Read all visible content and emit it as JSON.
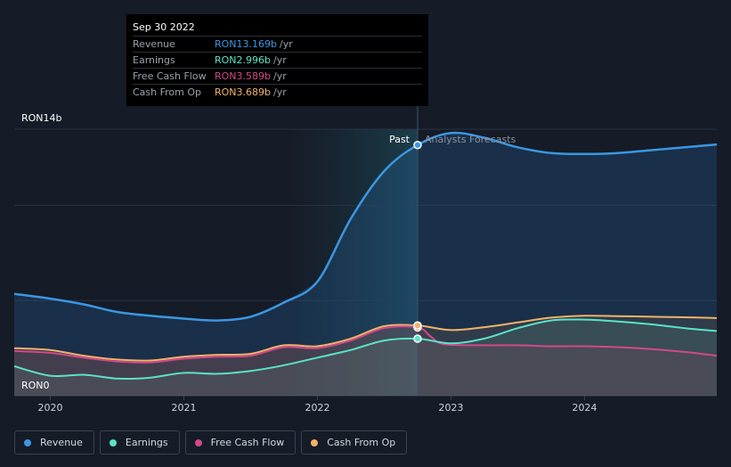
{
  "chart_data": {
    "type": "area",
    "currency_unit": "RON",
    "y_axis_labels": [
      "RON14b",
      "RON0"
    ],
    "ylim": [
      0,
      14
    ],
    "x_ticks": [
      "2020",
      "2021",
      "2022",
      "2023",
      "2024"
    ],
    "xlim": [
      2019.73,
      2024.99
    ],
    "past_label": "Past",
    "forecast_label": "Analysts Forecasts",
    "split_x": 2022.75,
    "highlight_start_x": 2021.75,
    "series": [
      {
        "name": "Revenue",
        "color": "#3b97e2",
        "x": [
          2019.73,
          2020.0,
          2020.25,
          2020.5,
          2020.75,
          2021.0,
          2021.25,
          2021.5,
          2021.75,
          2022.0,
          2022.25,
          2022.5,
          2022.75,
          2023.0,
          2023.25,
          2023.5,
          2023.75,
          2024.0,
          2024.25,
          2024.5,
          2024.75,
          2024.99
        ],
        "y": [
          5.35,
          5.1,
          4.8,
          4.4,
          4.2,
          4.05,
          3.95,
          4.15,
          4.9,
          6.0,
          9.3,
          11.8,
          13.169,
          13.8,
          13.55,
          13.05,
          12.75,
          12.7,
          12.75,
          12.9,
          13.05,
          13.2
        ]
      },
      {
        "name": "Earnings",
        "color": "#5ce2c8",
        "x": [
          2019.73,
          2020.0,
          2020.25,
          2020.5,
          2020.75,
          2021.0,
          2021.25,
          2021.5,
          2021.75,
          2022.0,
          2022.25,
          2022.5,
          2022.75,
          2023.0,
          2023.25,
          2023.5,
          2023.75,
          2024.0,
          2024.25,
          2024.5,
          2024.75,
          2024.99
        ],
        "y": [
          1.55,
          1.05,
          1.1,
          0.9,
          0.95,
          1.2,
          1.15,
          1.3,
          1.6,
          2.0,
          2.4,
          2.9,
          2.996,
          2.75,
          3.0,
          3.55,
          3.95,
          4.0,
          3.9,
          3.75,
          3.55,
          3.4
        ]
      },
      {
        "name": "Free Cash Flow",
        "color": "#d2498a",
        "x": [
          2019.73,
          2020.0,
          2020.25,
          2020.5,
          2020.75,
          2021.0,
          2021.25,
          2021.5,
          2021.75,
          2022.0,
          2022.25,
          2022.5,
          2022.75,
          2022.85,
          2022.95,
          2023.25,
          2023.5,
          2023.75,
          2024.0,
          2024.25,
          2024.5,
          2024.75,
          2024.99
        ],
        "y": [
          2.35,
          2.25,
          2.0,
          1.8,
          1.75,
          1.95,
          2.05,
          2.1,
          2.55,
          2.5,
          2.9,
          3.55,
          3.589,
          3.1,
          2.7,
          2.65,
          2.65,
          2.6,
          2.6,
          2.55,
          2.45,
          2.3,
          2.1
        ]
      },
      {
        "name": "Cash From Op",
        "color": "#f0b26b",
        "x": [
          2019.73,
          2020.0,
          2020.25,
          2020.5,
          2020.75,
          2021.0,
          2021.25,
          2021.5,
          2021.75,
          2022.0,
          2022.25,
          2022.5,
          2022.75,
          2023.0,
          2023.25,
          2023.5,
          2023.75,
          2024.0,
          2024.25,
          2024.5,
          2024.75,
          2024.99
        ],
        "y": [
          2.5,
          2.4,
          2.1,
          1.9,
          1.85,
          2.05,
          2.15,
          2.2,
          2.65,
          2.6,
          3.0,
          3.65,
          3.689,
          3.45,
          3.6,
          3.85,
          4.1,
          4.2,
          4.18,
          4.15,
          4.12,
          4.08
        ]
      }
    ]
  },
  "tooltip": {
    "date": "Sep 30 2022",
    "rows": [
      {
        "label": "Revenue",
        "value": "RON13.169b",
        "unit": "/yr",
        "color": "#3b97e2"
      },
      {
        "label": "Earnings",
        "value": "RON2.996b",
        "unit": "/yr",
        "color": "#5ce2c8"
      },
      {
        "label": "Free Cash Flow",
        "value": "RON3.589b",
        "unit": "/yr",
        "color": "#d2498a"
      },
      {
        "label": "Cash From Op",
        "value": "RON3.689b",
        "unit": "/yr",
        "color": "#f0b26b"
      }
    ]
  },
  "legend": [
    {
      "label": "Revenue",
      "color": "#3b97e2"
    },
    {
      "label": "Earnings",
      "color": "#5ce2c8"
    },
    {
      "label": "Free Cash Flow",
      "color": "#d2498a"
    },
    {
      "label": "Cash From Op",
      "color": "#f0b26b"
    }
  ]
}
